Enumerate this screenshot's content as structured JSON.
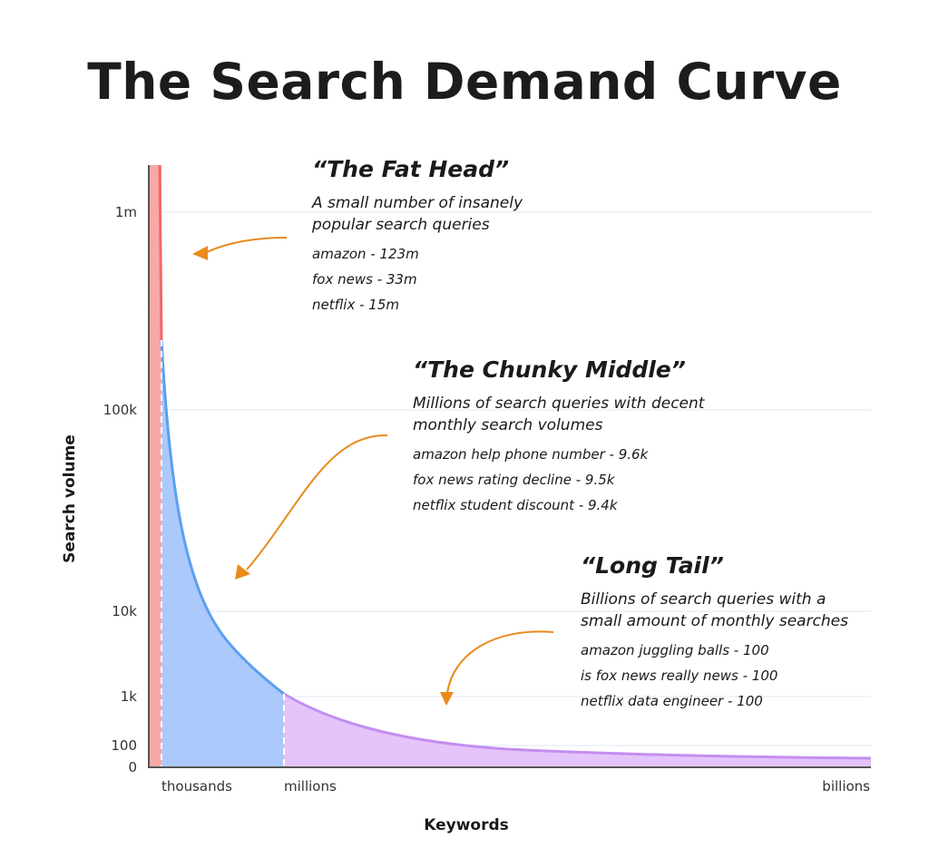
{
  "title": "The Search Demand Curve",
  "colors": {
    "head_fill": "#f9a8a8",
    "head_line": "#f16868",
    "middle_fill": "#acc9fb",
    "middle_line": "#5b9ff0",
    "tail_fill": "#e4c4fb",
    "tail_line": "#c48ef0",
    "arrow": "#e98a1c",
    "axis": "#555555",
    "grid": "#a6bde0"
  },
  "chart_data": {
    "type": "area",
    "xlabel": "Keywords",
    "ylabel": "Search volume",
    "x_ticks": [
      "thousands",
      "millions",
      "billions"
    ],
    "y_ticks": [
      "0",
      "100",
      "1k",
      "10k",
      "100k",
      "1m"
    ],
    "segments": [
      {
        "name": "The Fat Head",
        "x_range": [
          "0",
          "thousands"
        ],
        "y_range": [
          "1m+",
          "200k"
        ]
      },
      {
        "name": "The Chunky Middle",
        "x_range": [
          "thousands",
          "millions"
        ],
        "y_range": [
          "200k",
          "1k"
        ]
      },
      {
        "name": "Long Tail",
        "x_range": [
          "millions",
          "billions"
        ],
        "y_range": [
          "1k",
          "~20"
        ]
      }
    ],
    "grid": true,
    "log_scale_y": true
  },
  "annotations": [
    {
      "heading": "“The Fat Head”",
      "desc": "A small number of insanely\npopular search queries",
      "examples": [
        "amazon - 123m",
        "fox news - 33m",
        "netflix - 15m"
      ]
    },
    {
      "heading": "“The Chunky Middle”",
      "desc": "Millions of search queries with decent\nmonthly search volumes",
      "examples": [
        "amazon help phone number - 9.6k",
        "fox news rating decline - 9.5k",
        "netflix student discount - 9.4k"
      ]
    },
    {
      "heading": "“Long Tail”",
      "desc": "Billions of search queries with a\nsmall amount of monthly searches",
      "examples": [
        "amazon juggling balls - 100",
        "is fox news really news - 100",
        "netflix data engineer - 100"
      ]
    }
  ]
}
